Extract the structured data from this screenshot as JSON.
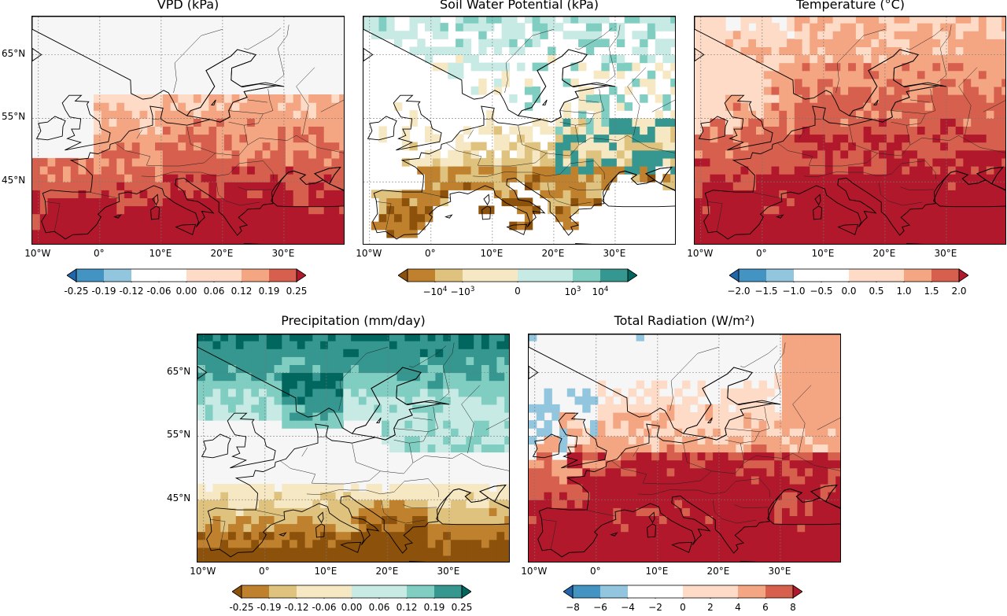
{
  "colormaps": {
    "rdbu": [
      "#2166ac",
      "#4393c3",
      "#92c5de",
      "#f7f7f7",
      "#f7f7f7",
      "#fddbc7",
      "#f4a582",
      "#d6604d",
      "#b2182b"
    ],
    "brbg": [
      "#8c510a",
      "#bf812d",
      "#dfc27d",
      "#f6e8c3",
      "#f5f5f5",
      "#c7eae5",
      "#80cdc1",
      "#35978f",
      "#01665e"
    ]
  },
  "xticks": [
    "10°W",
    "0°",
    "10°E",
    "20°E",
    "30°E"
  ],
  "yticks": [
    "65°N",
    "55°N",
    "45°N"
  ],
  "panels": [
    {
      "key": "vpd",
      "title": "VPD (kPa)",
      "cmap": "rdbu",
      "pattern": "south-warm",
      "cbar_labels": [
        "-0.25",
        "-0.19",
        "-0.12",
        "-0.06",
        "0.00",
        "0.06",
        "0.12",
        "0.19",
        "0.25"
      ]
    },
    {
      "key": "swp",
      "title": "Soil Water Potential (kPa)",
      "cmap": "brbg",
      "pattern": "soil",
      "cbar_labels": [
        {
          "b": "−10",
          "e": "4"
        },
        {
          "b": "−10",
          "e": "3"
        },
        {
          "b": "0",
          "e": ""
        },
        {
          "b": "10",
          "e": "3"
        },
        {
          "b": "10",
          "e": "4"
        }
      ]
    },
    {
      "key": "temp",
      "title": "Temperature (°C)",
      "cmap": "rdbu",
      "pattern": "temp",
      "cbar_labels": [
        "−2.0",
        "−1.5",
        "−1.0",
        "−0.5",
        "0.0",
        "0.5",
        "1.0",
        "1.5",
        "2.0"
      ]
    },
    {
      "key": "precip",
      "title": "Precipitation (mm/day)",
      "cmap": "brbg",
      "pattern": "precip",
      "cbar_labels": [
        "-0.25",
        "-0.19",
        "-0.12",
        "-0.06",
        "0.00",
        "0.06",
        "0.12",
        "0.19",
        "0.25"
      ]
    },
    {
      "key": "rad",
      "title": "Total Radiation (W/m²)",
      "cmap": "rdbu",
      "pattern": "rad",
      "cbar_labels": [
        "−8",
        "−6",
        "−4",
        "−2",
        "0",
        "2",
        "4",
        "6",
        "8"
      ]
    }
  ]
}
